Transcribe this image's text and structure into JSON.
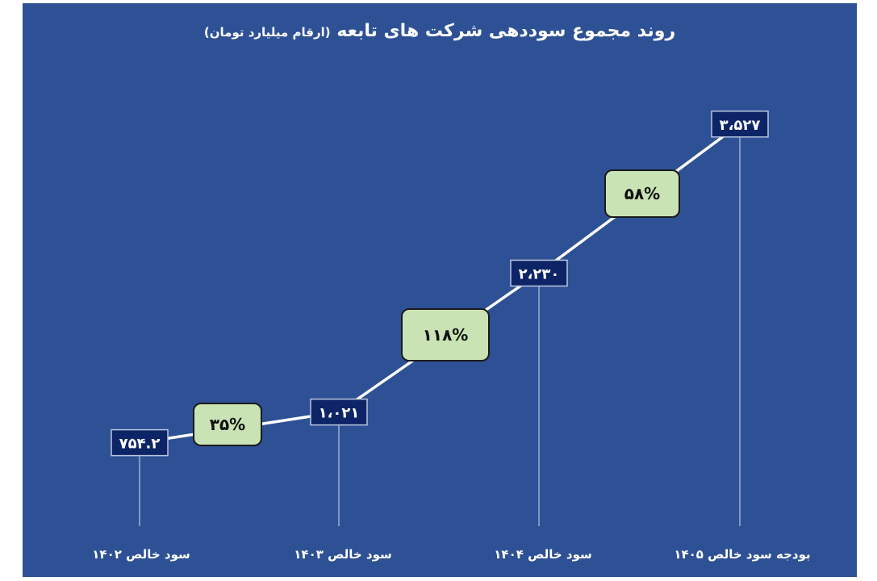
{
  "chart_data": {
    "type": "line",
    "title": "روند مجموع سوددهی شرکت های تابعه",
    "subtitle": "(ارقام میلیارد تومان)",
    "categories": [
      "سود خالص ۱۴۰۲",
      "سود خالص ۱۴۰۳",
      "سود خالص ۱۴۰۴",
      "بودجه سود خالص ۱۴۰۵"
    ],
    "values": [
      754.2,
      1021,
      2230,
      3527
    ],
    "value_labels": [
      "۷۵۴.۲",
      "۱،۰۲۱",
      "۲،۲۳۰",
      "۳،۵۲۷"
    ],
    "growth_labels": [
      "۳۵%",
      "۱۱۸%",
      "۵۸%"
    ],
    "grid": false,
    "colors": {
      "background": "#2e5195",
      "line": "#ffffff",
      "value_box": "#0d2466",
      "growth_box": "#c9e3b4"
    }
  }
}
